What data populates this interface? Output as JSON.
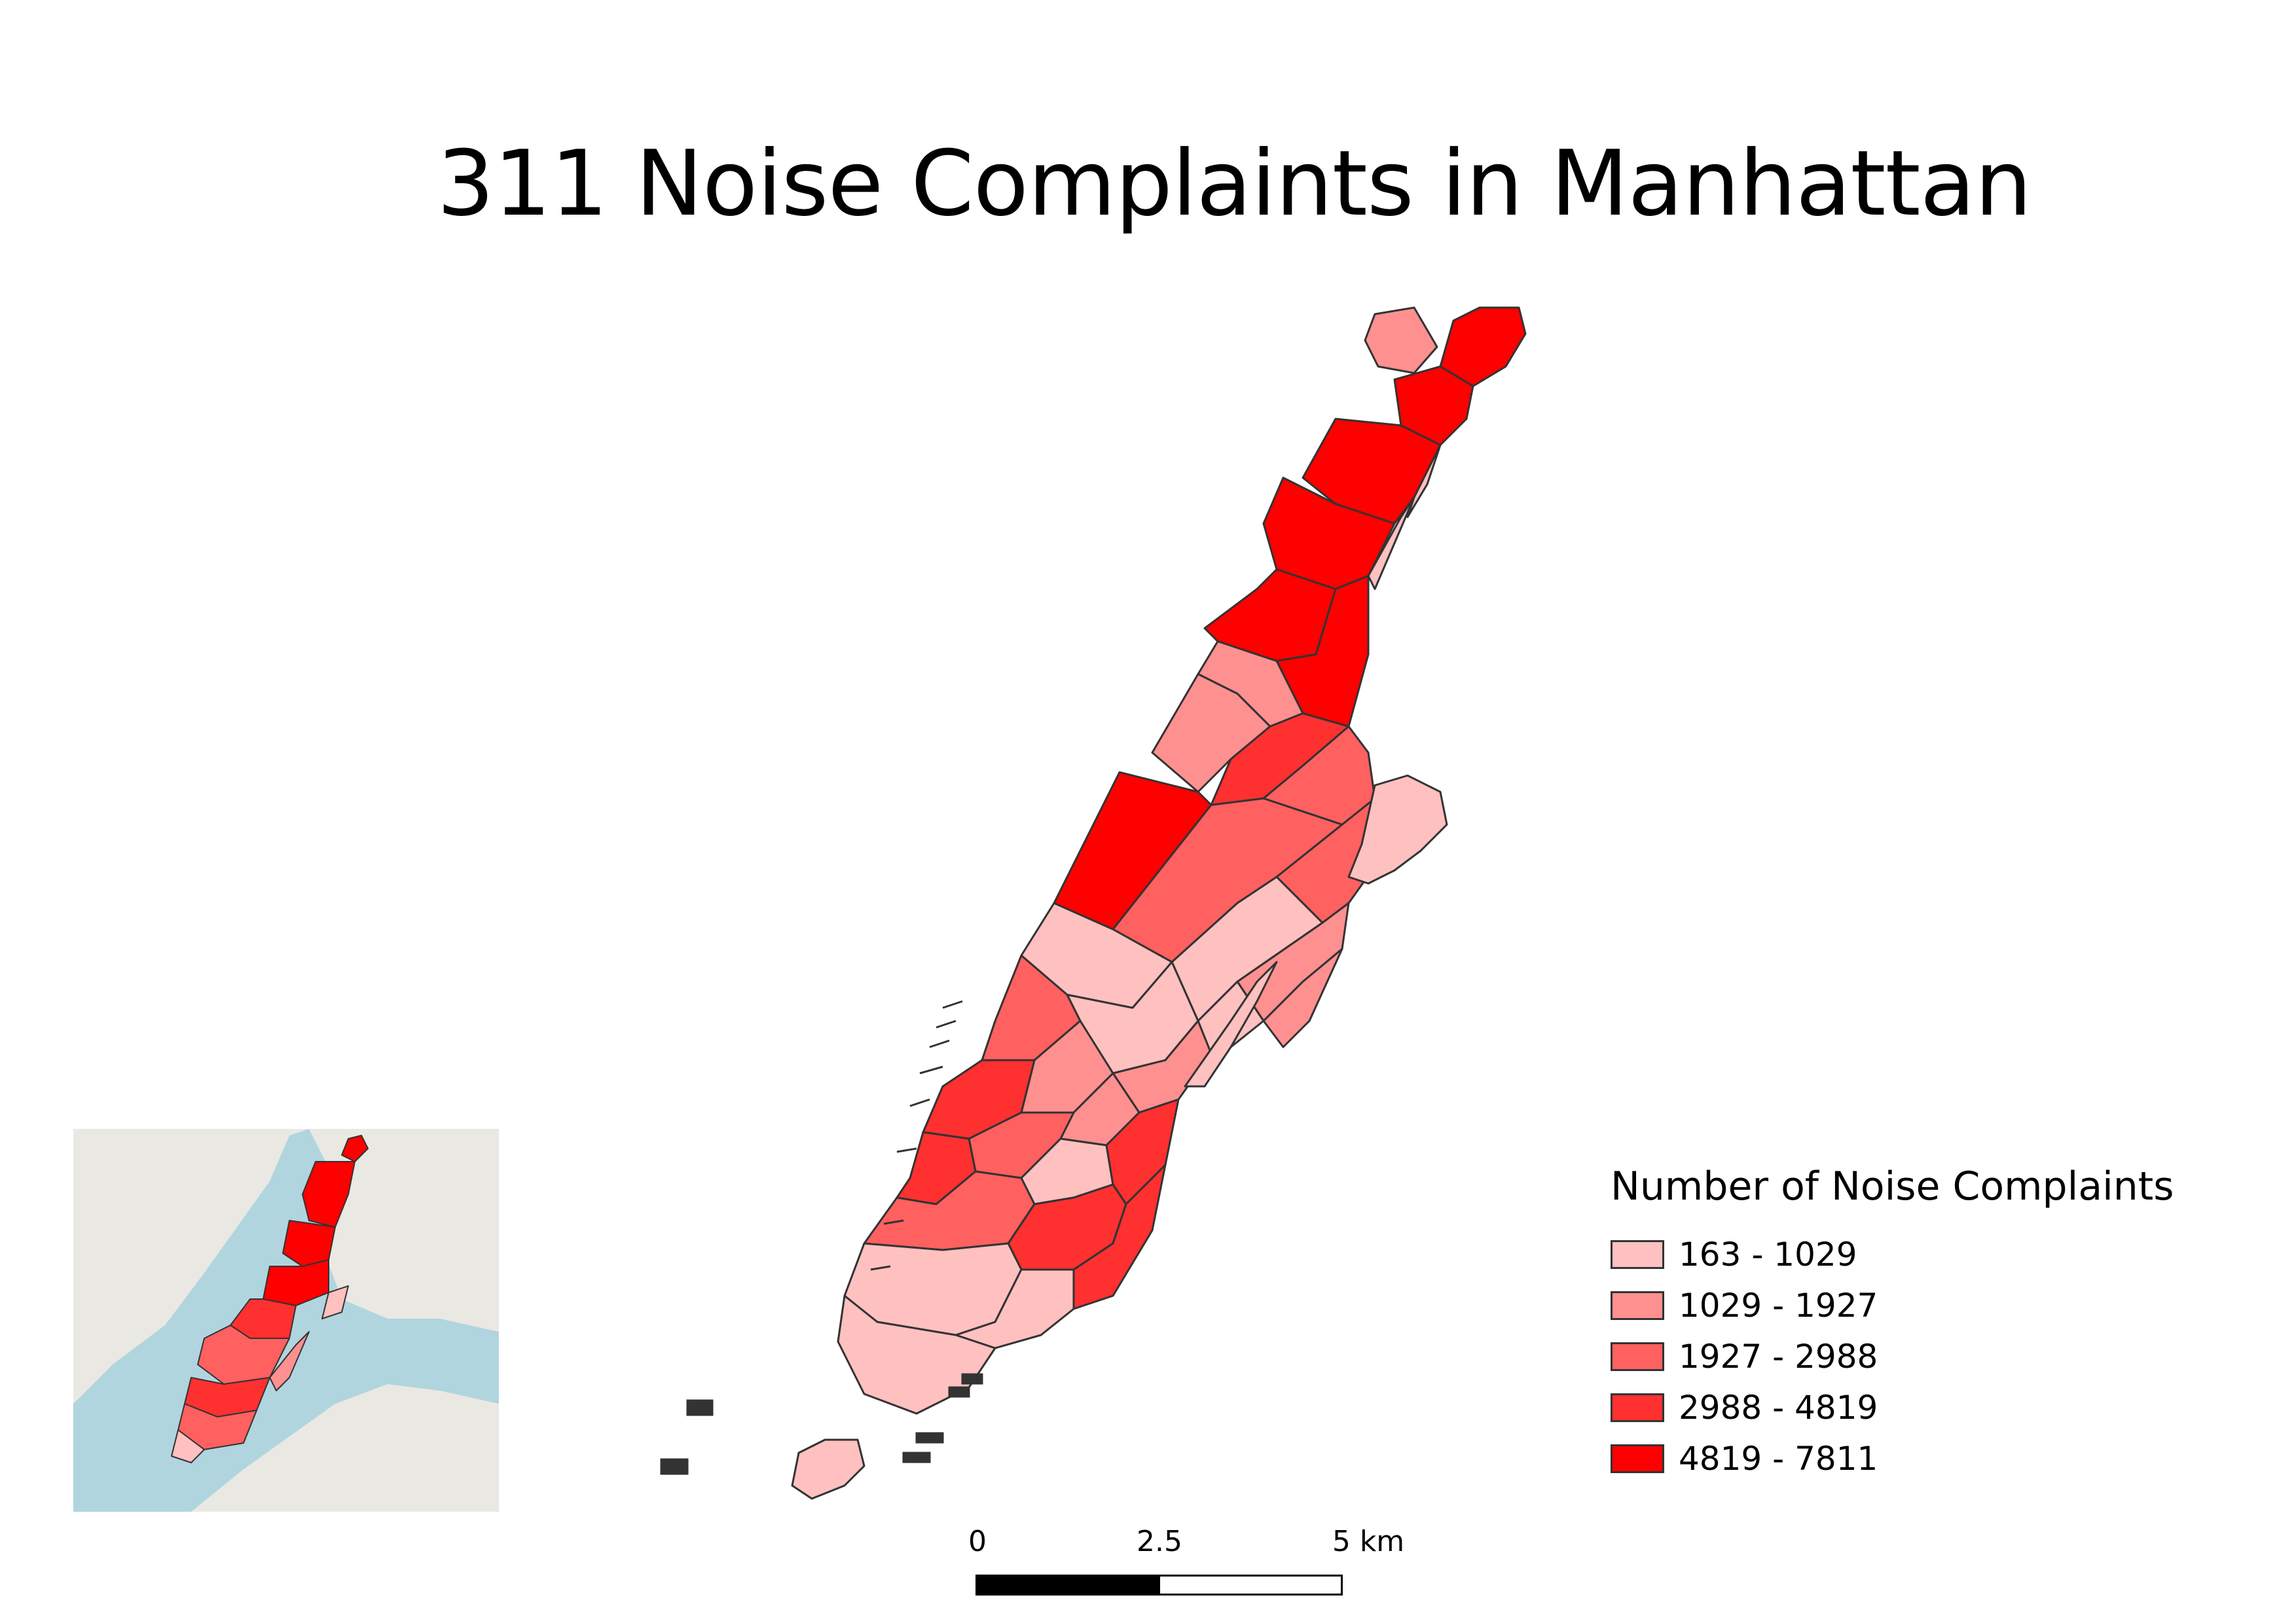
{
  "title": "311 Noise Complaints in Manhattan",
  "legend": {
    "title": "Number of Noise Complaints",
    "classes": [
      {
        "label": "163 - 1029",
        "color": "#ffc0c0"
      },
      {
        "label": "1029 - 1927",
        "color": "#ff9090"
      },
      {
        "label": "1927 - 2988",
        "color": "#ff6060"
      },
      {
        "label": "2988 - 4819",
        "color": "#ff3030"
      },
      {
        "label": "4819 - 7811",
        "color": "#ff0000"
      }
    ]
  },
  "scalebar": {
    "labels": [
      "0",
      "2.5",
      "5 km"
    ]
  },
  "colors": {
    "outline": "#333333",
    "inset_land": "#eae8e2",
    "inset_water": "#aad3df"
  },
  "regions_class": [
    1,
    4,
    4,
    4,
    4,
    0,
    0,
    4,
    4,
    1,
    1,
    3,
    2,
    4,
    2,
    2,
    0,
    1,
    0,
    1,
    0,
    0,
    2,
    1,
    1,
    1,
    3,
    2,
    3,
    0,
    3,
    2,
    3,
    3,
    0,
    0,
    0,
    0,
    0,
    0
  ]
}
